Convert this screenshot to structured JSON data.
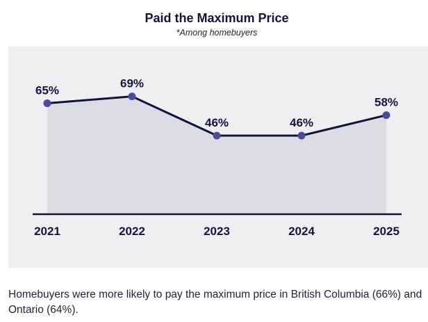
{
  "title": "Paid the Maximum Price",
  "subtitle": "*Among homebuyers",
  "footnote": "Homebuyers were more likely to pay the maximum price in British Columbia (66%) and Ontario (64%).",
  "colors": {
    "line": "#13133f",
    "marker": "#4b4c9e",
    "area": "#dcdce4",
    "panel": "#efeff1",
    "text": "#13133f"
  },
  "chart_data": {
    "type": "area",
    "title": "Paid the Maximum Price",
    "subtitle": "*Among homebuyers",
    "categories": [
      "2021",
      "2022",
      "2023",
      "2024",
      "2025"
    ],
    "series": [
      {
        "values": [
          65,
          69,
          46,
          46,
          58
        ]
      }
    ],
    "data_labels": [
      "65%",
      "69%",
      "46%",
      "46%",
      "58%"
    ],
    "grid": false,
    "legend": "none"
  }
}
